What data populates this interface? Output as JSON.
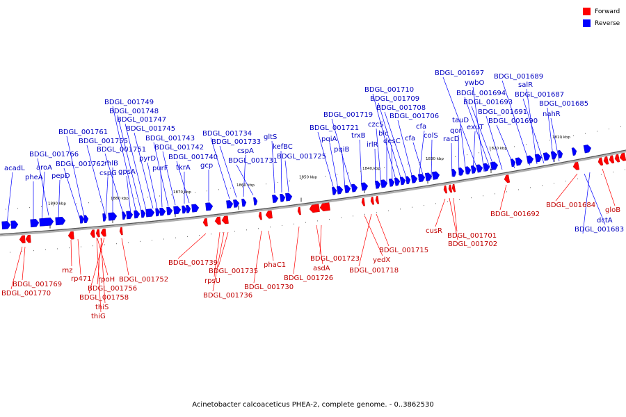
{
  "legend": {
    "forward_label": "Forward",
    "reverse_label": "Reverse",
    "forward_color": "#ff0000",
    "reverse_color": "#0000ff"
  },
  "caption": "Acinetobacter calcoaceticus PHEA-2, complete genome. - 0..3862530",
  "axis": {
    "scale_labels": [
      "1890 kbp",
      "1880 kbp",
      "1870 kbp",
      "1860 kbp",
      "1850 kbp",
      "1840 kbp",
      "1830 kbp",
      "1820 kbp",
      "1810 kbp"
    ]
  },
  "reverse_genes": [
    "acadL",
    "pheA",
    "aroA",
    "pepD",
    "BDGL_001766",
    "BDGL_001762",
    "BDGL_001761",
    "BDGL_001755",
    "cspG",
    "rhlB",
    "BDGL_001751",
    "gpsA",
    "BDGL_001749",
    "BDGL_001748",
    "BDGL_001747",
    "BDGL_001745",
    "pyrD",
    "purF",
    "BDGL_001743",
    "BDGL_001742",
    "tkrA",
    "BDGL_001740",
    "gcp",
    "BDGL_001734",
    "BDGL_001733",
    "cspA",
    "BDGL_001731",
    "gltS",
    "kefBC",
    "BDGL_001725",
    "BDGL_001721",
    "pqiA",
    "pqiB",
    "BDGL_001719",
    "trxB",
    "irlR",
    "czcS",
    "blc",
    "desC",
    "BDGL_001710",
    "BDGL_001709",
    "BDGL_001708",
    "BDGL_001706",
    "cfa",
    "cfa",
    "colS",
    "racD",
    "qor",
    "tauD",
    "exuT",
    "BDGL_001697",
    "ywbO",
    "BDGL_001694",
    "BDGL_001693",
    "BDGL_001691",
    "BDGL_001690",
    "BDGL_001689",
    "salR",
    "BDGL_001687",
    "BDGL_001685",
    "nahR",
    "dctA",
    "BDGL_001683"
  ],
  "forward_genes": [
    "BDGL_001769",
    "BDGL_001770",
    "rnz",
    "rp471",
    "rpoH",
    "BDGL_001756",
    "BDGL_001758",
    "thiS",
    "thiG",
    "BDGL_001752",
    "BDGL_001739",
    "rpsU",
    "BDGL_001736",
    "BDGL_001735",
    "phaC1",
    "BDGL_001730",
    "BDGL_001726",
    "asdA",
    "BDGL_001723",
    "yedX",
    "BDGL_001718",
    "BDGL_001715",
    "cusR",
    "BDGL_001701",
    "BDGL_001702",
    "BDGL_001692",
    "BDGL_001684",
    "gloB"
  ]
}
